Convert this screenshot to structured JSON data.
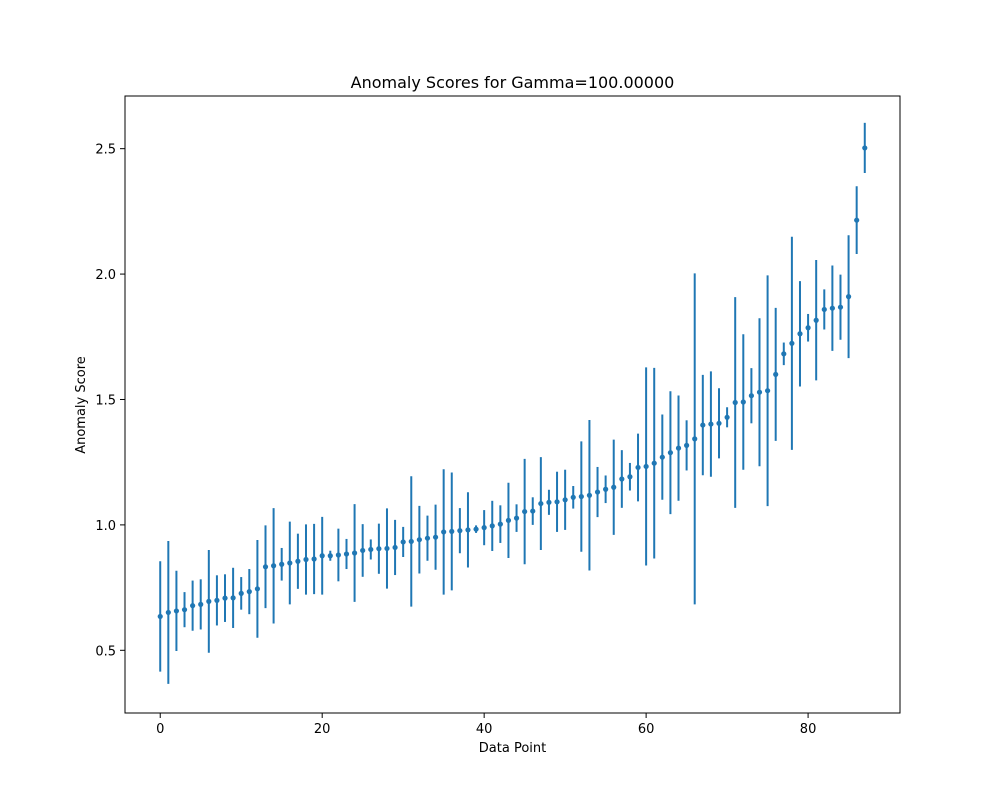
{
  "chart_data": {
    "type": "scatter",
    "title": "Anomaly Scores for Gamma=100.00000",
    "xlabel": "Data Point",
    "ylabel": "Anomaly Score",
    "xlim": [
      -4.35,
      91.35
    ],
    "ylim": [
      0.25,
      2.71
    ],
    "xticks": [
      0,
      20,
      40,
      60,
      80
    ],
    "yticks": [
      0.5,
      1.0,
      1.5,
      2.0,
      2.5
    ],
    "xtick_labels": [
      "0",
      "20",
      "40",
      "60",
      "80"
    ],
    "ytick_labels": [
      "0.5",
      "1.0",
      "1.5",
      "2.0",
      "2.5"
    ],
    "grid": false,
    "color": "#1f77b4",
    "series": [
      {
        "x": [
          0,
          1,
          2,
          3,
          4,
          5,
          6,
          7,
          8,
          9,
          10,
          11,
          12,
          13,
          14,
          15,
          16,
          17,
          18,
          19,
          20,
          21,
          22,
          23,
          24,
          25,
          26,
          27,
          28,
          29,
          30,
          31,
          32,
          33,
          34,
          35,
          36,
          37,
          38,
          39,
          40,
          41,
          42,
          43,
          44,
          45,
          46,
          47,
          48,
          49,
          50,
          51,
          52,
          53,
          54,
          55,
          56,
          57,
          58,
          59,
          60,
          61,
          62,
          63,
          64,
          65,
          66,
          67,
          68,
          69,
          70,
          71,
          72,
          73,
          74,
          75,
          76,
          77,
          78,
          79,
          80,
          81,
          82,
          83,
          84,
          85,
          86,
          87
        ],
        "y": [
          0.635,
          0.651,
          0.657,
          0.662,
          0.678,
          0.683,
          0.695,
          0.699,
          0.708,
          0.709,
          0.727,
          0.734,
          0.745,
          0.833,
          0.837,
          0.843,
          0.848,
          0.855,
          0.862,
          0.864,
          0.877,
          0.877,
          0.88,
          0.884,
          0.888,
          0.898,
          0.902,
          0.905,
          0.906,
          0.91,
          0.932,
          0.934,
          0.941,
          0.947,
          0.951,
          0.972,
          0.974,
          0.977,
          0.98,
          0.983,
          0.989,
          0.996,
          1.003,
          1.018,
          1.027,
          1.053,
          1.055,
          1.085,
          1.09,
          1.092,
          1.1,
          1.11,
          1.113,
          1.118,
          1.131,
          1.142,
          1.15,
          1.183,
          1.192,
          1.229,
          1.233,
          1.246,
          1.27,
          1.288,
          1.306,
          1.317,
          1.343,
          1.398,
          1.402,
          1.405,
          1.429,
          1.488,
          1.49,
          1.515,
          1.529,
          1.535,
          1.6,
          1.682,
          1.724,
          1.762,
          1.786,
          1.816,
          1.859,
          1.864,
          1.868,
          1.91,
          2.215,
          2.503
        ],
        "yerr": [
          0.22,
          0.285,
          0.16,
          0.07,
          0.1,
          0.1,
          0.205,
          0.1,
          0.095,
          0.12,
          0.065,
          0.09,
          0.195,
          0.165,
          0.23,
          0.065,
          0.165,
          0.11,
          0.14,
          0.14,
          0.155,
          0.02,
          0.105,
          0.06,
          0.195,
          0.105,
          0.04,
          0.1,
          0.16,
          0.11,
          0.06,
          0.26,
          0.135,
          0.09,
          0.13,
          0.25,
          0.235,
          0.09,
          0.15,
          0.015,
          0.07,
          0.1,
          0.075,
          0.15,
          0.055,
          0.21,
          0.055,
          0.185,
          0.05,
          0.12,
          0.12,
          0.045,
          0.22,
          0.3,
          0.1,
          0.055,
          0.19,
          0.115,
          0.055,
          0.135,
          0.395,
          0.38,
          0.17,
          0.245,
          0.21,
          0.1,
          0.66,
          0.2,
          0.21,
          0.14,
          0.04,
          0.42,
          0.27,
          0.11,
          0.295,
          0.46,
          0.265,
          0.045,
          0.425,
          0.21,
          0.055,
          0.24,
          0.08,
          0.17,
          0.13,
          0.245,
          0.135,
          0.1
        ]
      }
    ]
  }
}
